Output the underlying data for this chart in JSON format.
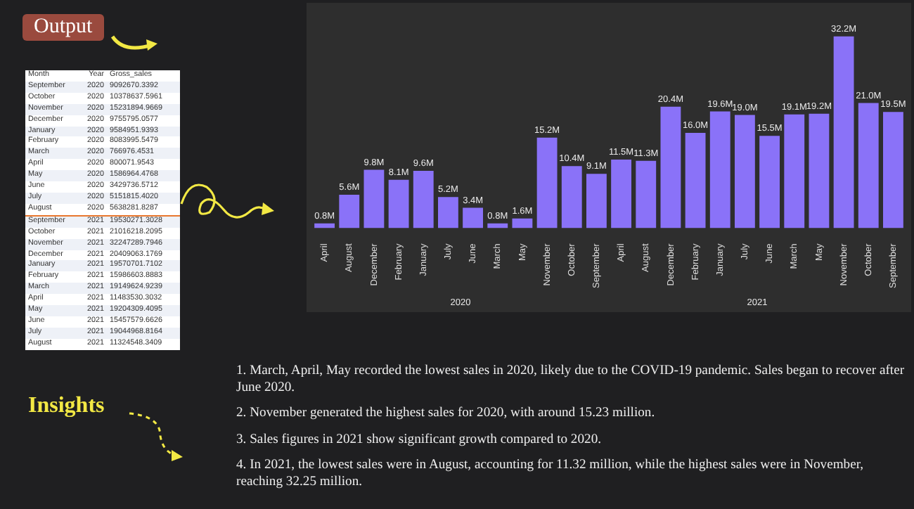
{
  "chart_data": [
    {
      "type": "other",
      "title": "Output",
      "annotations": [
        "Month",
        "Year",
        "Gross_sales",
        "September",
        "2020",
        "9092670.3392",
        "October",
        "2020",
        "10378637.5961",
        "November",
        "2020",
        "15231894.9669",
        "December",
        "2020",
        "9755795.0577",
        "January",
        "2020",
        "9584951.9393",
        "February",
        "2020",
        "8083995.5479",
        "March",
        "2020",
        "766976.4531",
        "April",
        "2020",
        "800071.9543",
        "May",
        "2020",
        "1586964.4768",
        "June",
        "2020",
        "3429736.5712",
        "July",
        "2020",
        "5151815.4020",
        "August",
        "2020",
        "5638281.8287",
        "September",
        "2021",
        "19530271.3028",
        "October",
        "2021",
        "21016218.2095",
        "November",
        "2021",
        "32247289.7946",
        "December",
        "2021",
        "20409063.1769",
        "January",
        "2021",
        "19570701.7102",
        "February",
        "2021",
        "15986603.8883",
        "March",
        "2021",
        "19149624.9239",
        "April",
        "2021",
        "11483530.3032",
        "May",
        "2021",
        "19204309.4095",
        "June",
        "2021",
        "15457579.6626",
        "July",
        "2021",
        "19044968.8164",
        "August",
        "2021",
        "11324548.3409"
      ]
    },
    {
      "type": "bar",
      "categories": [
        "April",
        "August",
        "December",
        "February",
        "January",
        "July",
        "June",
        "March",
        "May",
        "November",
        "October",
        "September",
        "April",
        "August",
        "December",
        "February",
        "January",
        "July",
        "June",
        "March",
        "May",
        "November",
        "October",
        "September"
      ],
      "series": [
        {
          "color": "#8a72f8",
          "values": [
            0.8,
            5.6,
            9.8,
            8.1,
            9.6,
            5.2,
            3.4,
            0.8,
            1.6,
            15.2,
            10.4,
            9.1,
            11.5,
            11.3,
            20.4,
            16.0,
            19.6,
            19.0,
            15.5,
            19.1,
            19.2,
            32.2,
            21.0,
            19.5
          ],
          "value_labels": [
            "0.8M",
            "5.6M",
            "9.8M",
            "8.1M",
            "9.6M",
            "5.2M",
            "3.4M",
            "0.8M",
            "1.6M",
            "15.2M",
            "10.4M",
            "9.1M",
            "11.5M",
            "11.3M",
            "20.4M",
            "16.0M",
            "19.6M",
            "19.0M",
            "15.5M",
            "19.1M",
            "19.2M",
            "32.2M",
            "21.0M",
            "19.5M"
          ]
        }
      ],
      "annotations": [
        "2020",
        "2021"
      ],
      "tick_labels": "x"
    },
    {
      "type": "other",
      "title": "Insights",
      "annotations": [
        "1. March, April, May recorded the lowest sales in 2020, likely due to the COVID-19 pandemic. Sales began to recover after June 2020.",
        "2. November generated the highest sales for 2020, with around 15.23 million.",
        "3. Sales figures in 2021 show significant growth compared to 2020.",
        "4. In 2021, the lowest sales were in August, accounting for 11.32 million, while the highest sales were in November, reaching 32.25 million."
      ]
    }
  ]
}
